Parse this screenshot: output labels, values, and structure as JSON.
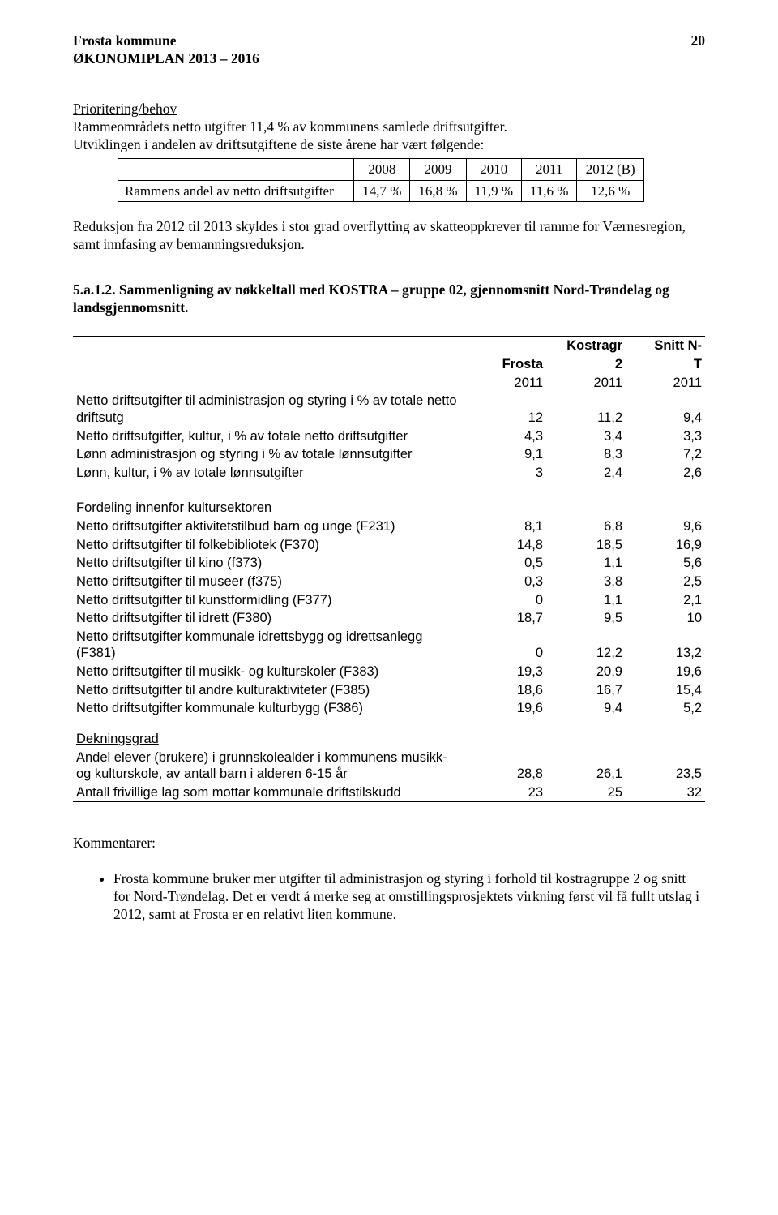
{
  "header": {
    "line1": "Frosta kommune",
    "line2": "ØKONOMIPLAN 2013 – 2016",
    "page": "20"
  },
  "prioritering": {
    "title": "Prioritering/behov",
    "line1": "Rammeområdets netto utgifter 11,4 % av kommunens samlede driftsutgifter.",
    "line2": "Utviklingen i andelen av driftsutgiftene de siste årene har vært følgende:"
  },
  "table1": {
    "row_label": "Rammens andel av netto driftsutgifter",
    "years": [
      "2008",
      "2009",
      "2010",
      "2011",
      "2012 (B)"
    ],
    "values": [
      "14,7 %",
      "16,8 %",
      "11,9 %",
      "11,6 %",
      "12,6 %"
    ]
  },
  "paragraph_reduksjon": "Reduksjon fra 2012 til 2013 skyldes i stor grad overflytting av skatteoppkrever til ramme for Værnesregion, samt innfasing av bemanningsreduksjon.",
  "subheading": "5.a.1.2. Sammenligning av nøkkeltall med KOSTRA – gruppe 02, gjennomsnitt Nord-Trøndelag og landsgjennomsnitt.",
  "table2": {
    "head": {
      "c1": "Frosta",
      "c2_top": "Kostragr",
      "c2_bot": "2",
      "c3_top": "Snitt N-",
      "c3_bot": "T",
      "yr": "2011"
    },
    "rows_main": [
      {
        "label": "Netto driftsutgifter til administrasjon og styring i % av totale netto driftsutg",
        "v": [
          "12",
          "11,2",
          "9,4"
        ]
      },
      {
        "label": "Netto driftsutgifter, kultur, i % av totale netto driftsutgifter",
        "v": [
          "4,3",
          "3,4",
          "3,3"
        ]
      },
      {
        "label": "Lønn administrasjon og styring i % av totale lønnsutgifter",
        "v": [
          "9,1",
          "8,3",
          "7,2"
        ]
      },
      {
        "label": "Lønn, kultur, i % av totale lønnsutgifter",
        "v": [
          "3",
          "2,4",
          "2,6"
        ]
      }
    ],
    "group_kultur_title": "Fordeling innenfor kultursektoren",
    "rows_kultur": [
      {
        "label": "Netto driftsutgifter aktivitetstilbud barn og unge (F231)",
        "v": [
          "8,1",
          "6,8",
          "9,6"
        ]
      },
      {
        "label": "Netto driftsutgifter til folkebibliotek (F370)",
        "v": [
          "14,8",
          "18,5",
          "16,9"
        ]
      },
      {
        "label": "Netto driftsutgifter til kino (f373)",
        "v": [
          "0,5",
          "1,1",
          "5,6"
        ]
      },
      {
        "label": "Netto driftsutgifter til museer (f375)",
        "v": [
          "0,3",
          "3,8",
          "2,5"
        ]
      },
      {
        "label": "Netto driftsutgifter til kunstformidling (F377)",
        "v": [
          "0",
          "1,1",
          "2,1"
        ]
      },
      {
        "label": "Netto driftsutgifter til idrett (F380)",
        "v": [
          "18,7",
          "9,5",
          "10"
        ]
      },
      {
        "label": "Netto driftsutgifter kommunale idrettsbygg og idrettsanlegg (F381)",
        "v": [
          "0",
          "12,2",
          "13,2"
        ]
      },
      {
        "label": "Netto driftsutgifter til musikk- og kulturskoler (F383)",
        "v": [
          "19,3",
          "20,9",
          "19,6"
        ]
      },
      {
        "label": "Netto driftsutgifter til andre kulturaktiviteter (F385)",
        "v": [
          "18,6",
          "16,7",
          "15,4"
        ]
      },
      {
        "label": "Netto driftsutgifter kommunale kulturbygg (F386)",
        "v": [
          "19,6",
          "9,4",
          "5,2"
        ]
      }
    ],
    "group_dek_title": "Dekningsgrad",
    "rows_dek": [
      {
        "label": "Andel elever (brukere) i grunnskolealder i kommunens musikk- og kulturskole, av antall barn i alderen 6-15 år",
        "v": [
          "28,8",
          "26,1",
          "23,5"
        ]
      },
      {
        "label": "Antall frivillige lag som mottar kommunale driftstilskudd",
        "v": [
          "23",
          "25",
          "32"
        ]
      }
    ]
  },
  "comments": {
    "title": "Kommentarer:",
    "bullet1": "Frosta kommune bruker mer utgifter til administrasjon og styring i forhold til kostragruppe 2 og snitt for Nord-Trøndelag. Det er verdt å merke seg at omstillingsprosjektets virkning først vil få fullt utslag i 2012, samt at Frosta er en relativt liten kommune."
  }
}
